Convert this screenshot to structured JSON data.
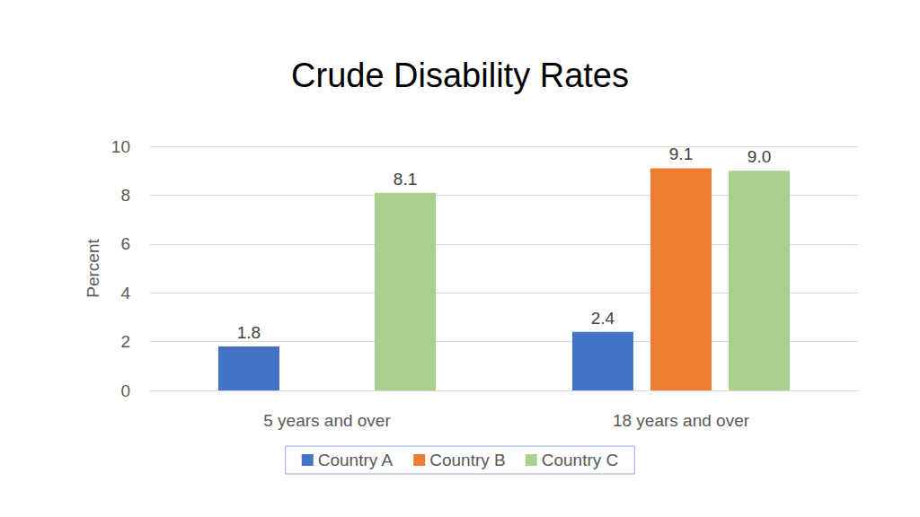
{
  "chart_data": {
    "type": "bar",
    "title": "Crude Disability Rates",
    "y_label": "Percent",
    "categories": [
      "5 years and over",
      "18 years and over"
    ],
    "series": [
      {
        "name": "Country A",
        "color": "#4472c4",
        "values": [
          1.8,
          2.4
        ],
        "value_labels": [
          "1.8",
          "2.4"
        ]
      },
      {
        "name": "Country B",
        "color": "#ed7d31",
        "values": [
          null,
          9.1
        ],
        "value_labels": [
          null,
          "9.1"
        ]
      },
      {
        "name": "Country C",
        "color": "#a9d18e",
        "values": [
          8.1,
          9.0
        ],
        "value_labels": [
          "8.1",
          "9.0"
        ]
      }
    ],
    "ylim": [
      0,
      10
    ],
    "yticks": [
      0,
      2,
      4,
      6,
      8,
      10
    ],
    "grid": true,
    "legend": "bottom",
    "data_labels": true
  }
}
